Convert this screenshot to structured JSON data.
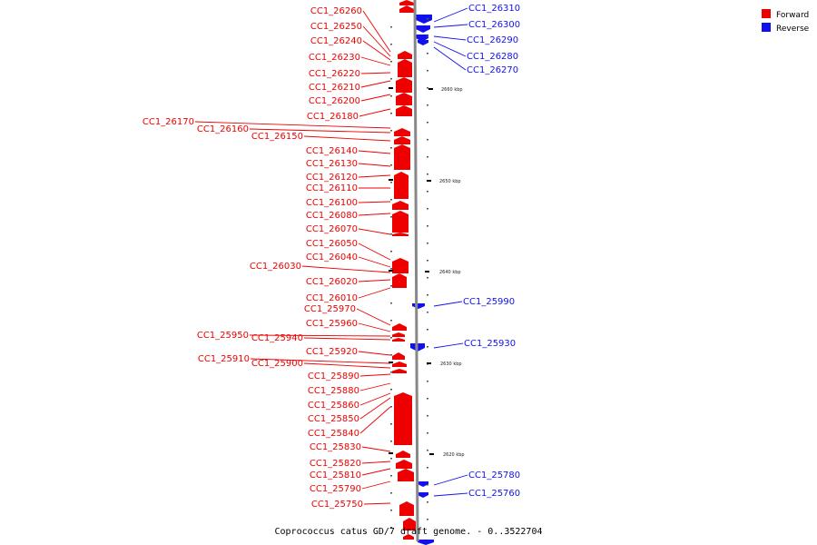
{
  "title": "Coprococcus catus GD/7 draft genome. - 0..3522704",
  "colors": {
    "forward": "#ee0000",
    "reverse": "#1111ee",
    "axis": "#888888"
  },
  "legend": [
    {
      "label": "Forward",
      "color": "#ee0000"
    },
    {
      "label": "Reverse",
      "color": "#1111ee"
    }
  ],
  "ticks": [
    {
      "label": "2660 kbp"
    },
    {
      "label": "2650 kbp"
    },
    {
      "label": "2640 kbp"
    },
    {
      "label": "2630 kbp"
    },
    {
      "label": "2620 kbp"
    }
  ],
  "forward_genes": [
    "CC1_26260",
    "CC1_26250",
    "CC1_26240",
    "CC1_26230",
    "CC1_26220",
    "CC1_26210",
    "CC1_26200",
    "CC1_26180",
    "CC1_26170",
    "CC1_26160",
    "CC1_26150",
    "CC1_26140",
    "CC1_26130",
    "CC1_26120",
    "CC1_26110",
    "CC1_26100",
    "CC1_26080",
    "CC1_26070",
    "CC1_26050",
    "CC1_26040",
    "CC1_26030",
    "CC1_26020",
    "CC1_26010",
    "CC1_25970",
    "CC1_25960",
    "CC1_25950",
    "CC1_25940",
    "CC1_25920",
    "CC1_25910",
    "CC1_25900",
    "CC1_25890",
    "CC1_25880",
    "CC1_25860",
    "CC1_25850",
    "CC1_25840",
    "CC1_25830",
    "CC1_25820",
    "CC1_25810",
    "CC1_25790",
    "CC1_25750"
  ],
  "reverse_genes": [
    "CC1_26310",
    "CC1_26300",
    "CC1_26290",
    "CC1_26280",
    "CC1_26270",
    "CC1_25990",
    "CC1_25930",
    "CC1_25780",
    "CC1_25760"
  ]
}
